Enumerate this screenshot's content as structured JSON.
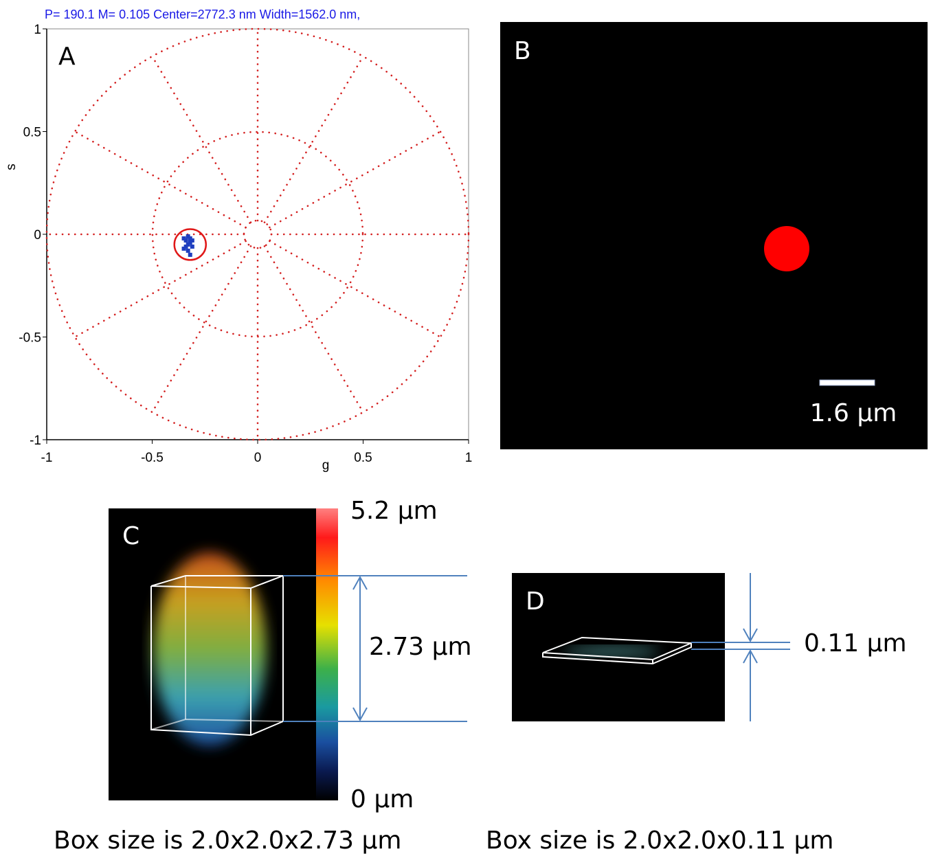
{
  "chart_data": {
    "type": "scatter",
    "title": "P= 190.1 M= 0.105 Center=2772.3 nm Width=1562.0 nm,",
    "panel_label": "A",
    "x_label": "g",
    "y_label": "s",
    "xlim": [
      -1,
      1
    ],
    "ylim": [
      -1,
      1
    ],
    "xticks": [
      -1,
      -0.5,
      0,
      0.5,
      1
    ],
    "yticks": [
      -1,
      -0.5,
      0,
      0.5,
      1
    ],
    "series": [
      {
        "color": "#1f3fbf",
        "x": [
          -0.35,
          -0.34,
          -0.33,
          -0.32,
          -0.31,
          -0.34,
          -0.33,
          -0.32,
          -0.33,
          -0.31,
          -0.35,
          -0.32
        ],
        "values": [
          -0.02,
          -0.03,
          -0.01,
          -0.04,
          -0.06,
          -0.06,
          -0.08,
          -0.1,
          -0.05,
          -0.03,
          -0.07,
          -0.02
        ]
      }
    ],
    "cursor": {
      "g": -0.32,
      "s": -0.05,
      "radius": 0.075,
      "color": "#e01818"
    }
  },
  "panels": {
    "B": {
      "label": "B",
      "scale_bar": "1.6 µm"
    },
    "C": {
      "label": "C",
      "colorbar_max": "5.2 µm",
      "colorbar_min": "0 µm",
      "height": "2.73 µm",
      "caption": "Box size is 2.0x2.0x2.73 µm"
    },
    "D": {
      "label": "D",
      "height": "0.11 µm",
      "caption": "Box size is 2.0x2.0x0.11 µm"
    }
  }
}
